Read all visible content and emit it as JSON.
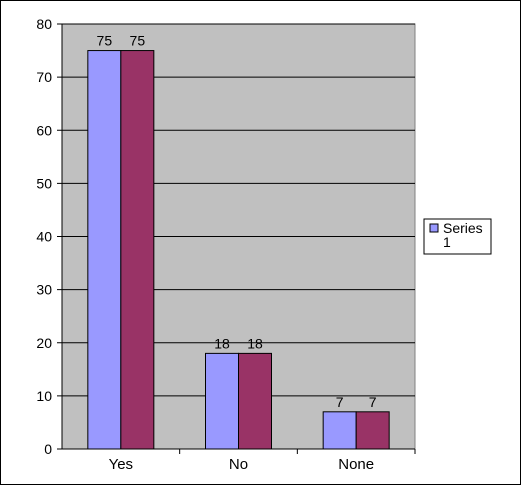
{
  "chart_data": {
    "type": "bar",
    "categories": [
      "Yes",
      "No",
      "None"
    ],
    "series": [
      {
        "name": "Series 1",
        "values": [
          75,
          18,
          7
        ],
        "color": "#9999ff"
      },
      {
        "values": [
          75,
          18,
          7
        ],
        "color": "#993366"
      }
    ],
    "ylim": [
      0,
      80
    ],
    "yticks": [
      "0",
      "10",
      "20",
      "30",
      "40",
      "50",
      "60",
      "70",
      "80"
    ],
    "grid": true,
    "plot_background": "#c0c0c0",
    "legend": {
      "position": "right",
      "entries": [
        "Series 1"
      ]
    }
  }
}
